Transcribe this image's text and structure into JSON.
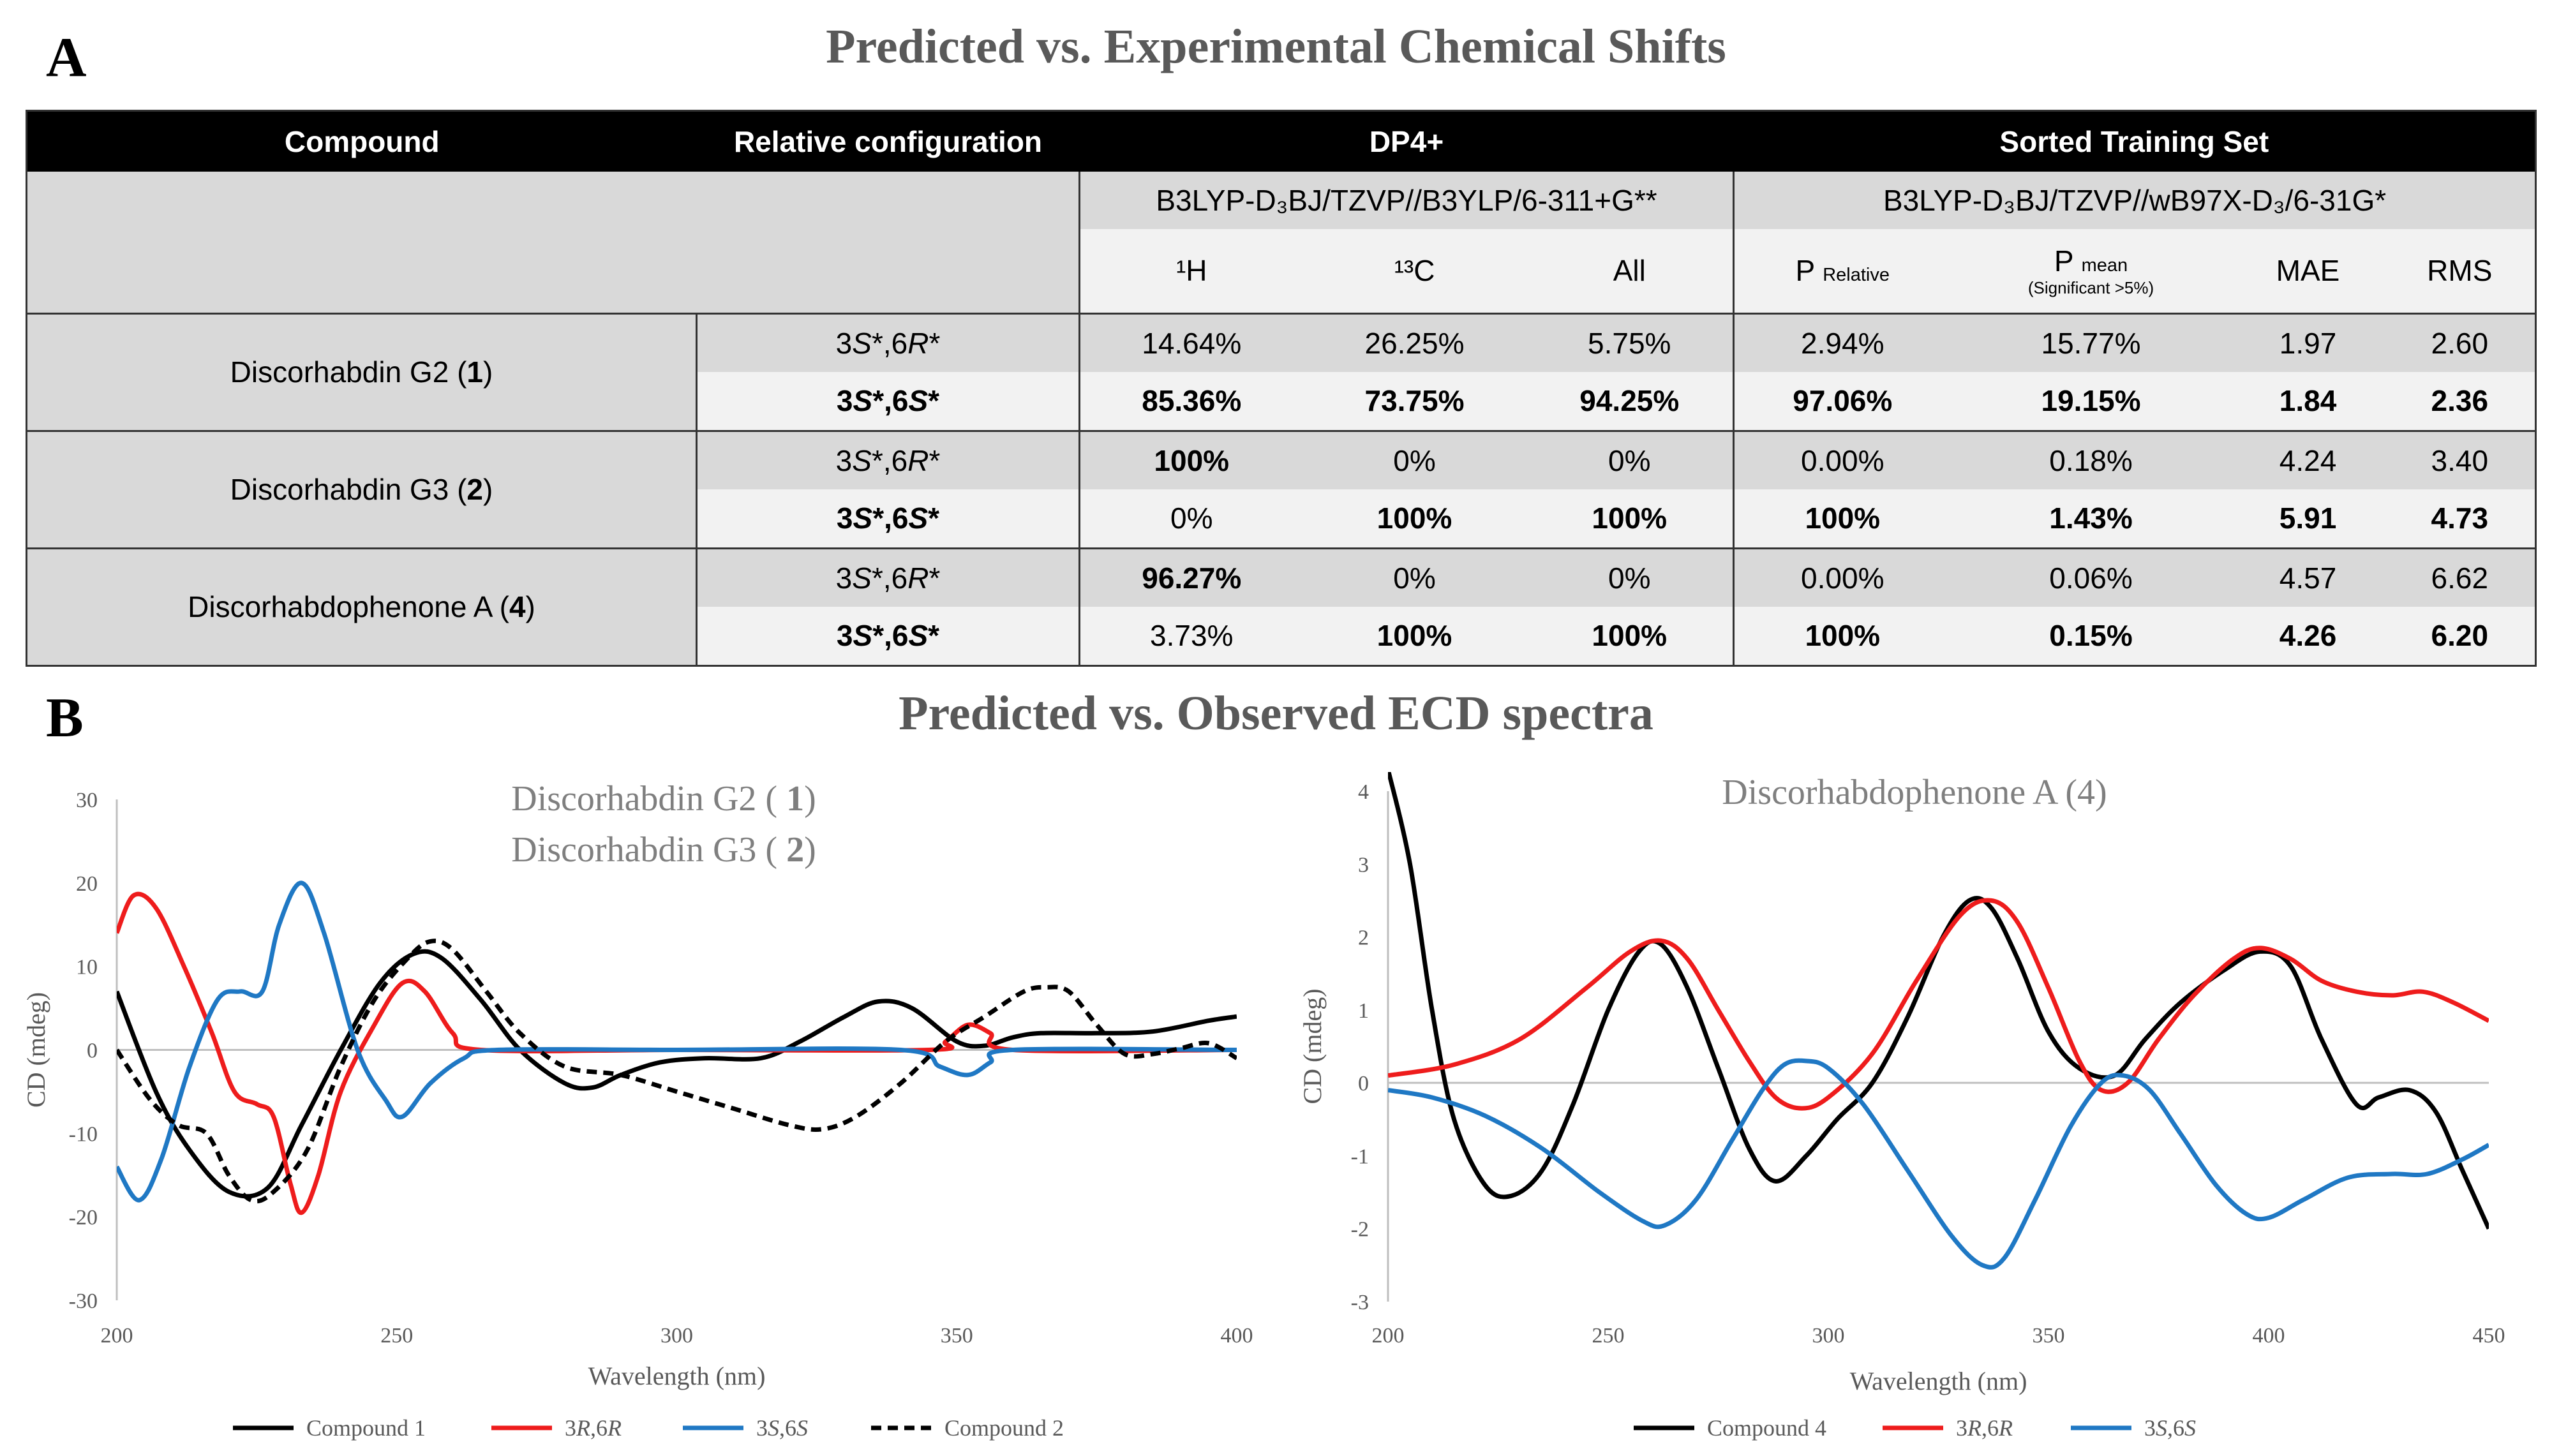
{
  "panel_a": {
    "letter": "A",
    "title": "Predicted vs. Experimental Chemical Shifts",
    "headers": {
      "compound": "Compound",
      "relative_configuration": "Relative configuration",
      "dp4": "DP4+",
      "sorted_training_set": "Sorted Training Set"
    },
    "dp4_method": "B3LYP-D₃BJ/TZVP//B3YLP/6-311+G**",
    "sts_method": "B3LYP-D₃BJ/TZVP//wB97X-D₃/6-31G*",
    "subheaders": {
      "h1": "¹H",
      "c13": "¹³C",
      "all": "All",
      "p_relative_main": "P",
      "p_relative_sub": "Relative",
      "p_mean_main": "P",
      "p_mean_sub": "mean",
      "p_mean_note": "(Significant >5%)",
      "mae": "MAE",
      "rms": "RMS"
    },
    "compounds": [
      {
        "name": "Discorhabdin G2 (",
        "num": "1",
        "close": ")",
        "rows": [
          {
            "config": "3S*,6R*",
            "h1": "14.64%",
            "c13": "26.25%",
            "all": "5.75%",
            "p_rel": "2.94%",
            "p_mean": "15.77%",
            "mae": "1.97",
            "rms": "2.60"
          },
          {
            "config": "3S*,6S*",
            "h1": "85.36%",
            "c13": "73.75%",
            "all": "94.25%",
            "p_rel": "97.06%",
            "p_mean": "19.15%",
            "mae": "1.84",
            "rms": "2.36"
          }
        ]
      },
      {
        "name": "Discorhabdin G3 (",
        "num": "2",
        "close": ")",
        "rows": [
          {
            "config": "3S*,6R*",
            "h1": "100%",
            "c13": "0%",
            "all": "0%",
            "p_rel": "0.00%",
            "p_mean": "0.18%",
            "mae": "4.24",
            "rms": "3.40"
          },
          {
            "config": "3S*,6S*",
            "h1": "0%",
            "c13": "100%",
            "all": "100%",
            "p_rel": "100%",
            "p_mean": "1.43%",
            "mae": "5.91",
            "rms": "4.73"
          }
        ]
      },
      {
        "name": "Discorhabdophenone A (",
        "num": "4",
        "close": ")",
        "rows": [
          {
            "config": "3S*,6R*",
            "h1": "96.27%",
            "c13": "0%",
            "all": "0%",
            "p_rel": "0.00%",
            "p_mean": "0.06%",
            "mae": "4.57",
            "rms": "6.62"
          },
          {
            "config": "3S*,6S*",
            "h1": "3.73%",
            "c13": "100%",
            "all": "100%",
            "p_rel": "100%",
            "p_mean": "0.15%",
            "mae": "4.26",
            "rms": "6.20"
          }
        ]
      }
    ]
  },
  "panel_b": {
    "letter": "B",
    "title": "Predicted vs. Observed ECD spectra"
  },
  "colors": {
    "compound": "#000000",
    "rr": "#ee1c1c",
    "ss": "#1f78c4",
    "axis": "#bfbfbf"
  },
  "chart_data": [
    {
      "type": "line",
      "title_lines": [
        "Discorhabdin G2 ( 1)",
        "Discorhabdin G3 ( 2)"
      ],
      "xlabel": "Wavelength (nm)",
      "ylabel": "CD (mdeg)",
      "xlim": [
        200,
        400
      ],
      "ylim": [
        -30,
        30
      ],
      "xticks": [
        200,
        250,
        300,
        350,
        400
      ],
      "yticks": [
        -30,
        -20,
        -10,
        0,
        10,
        20,
        30
      ],
      "series": [
        {
          "name": "Compound 1",
          "color": "#000000",
          "dashed": false,
          "points": [
            [
              200,
              7
            ],
            [
              207,
              -5
            ],
            [
              213,
              -12
            ],
            [
              220,
              -17
            ],
            [
              227,
              -16.5
            ],
            [
              233,
              -9
            ],
            [
              240,
              0
            ],
            [
              247,
              8
            ],
            [
              253,
              11.5
            ],
            [
              258,
              11
            ],
            [
              265,
              6
            ],
            [
              272,
              0
            ],
            [
              280,
              -4
            ],
            [
              285,
              -4.5
            ],
            [
              290,
              -3
            ],
            [
              297,
              -1.5
            ],
            [
              305,
              -1
            ],
            [
              315,
              -1
            ],
            [
              322,
              1
            ],
            [
              330,
              4
            ],
            [
              336,
              5.8
            ],
            [
              342,
              5
            ],
            [
              350,
              1
            ],
            [
              355,
              0.5
            ],
            [
              360,
              1.5
            ],
            [
              365,
              2
            ],
            [
              375,
              2
            ],
            [
              385,
              2.2
            ],
            [
              395,
              3.5
            ],
            [
              400,
              4
            ]
          ]
        },
        {
          "name": "3R,6R",
          "color": "#ee1c1c",
          "dashed": false,
          "points": [
            [
              200,
              14
            ],
            [
              203,
              18.5
            ],
            [
              207,
              17
            ],
            [
              212,
              10
            ],
            [
              217,
              2
            ],
            [
              221,
              -5
            ],
            [
              225,
              -6.5
            ],
            [
              228,
              -8
            ],
            [
              231,
              -16
            ],
            [
              233,
              -19.5
            ],
            [
              236,
              -15
            ],
            [
              240,
              -5
            ],
            [
              246,
              3
            ],
            [
              251,
              8
            ],
            [
              255,
              7
            ],
            [
              260,
              2
            ],
            [
              265,
              0
            ],
            [
              300,
              0
            ],
            [
              345,
              0
            ],
            [
              348,
              1
            ],
            [
              352,
              3
            ],
            [
              356,
              2
            ],
            [
              360,
              0
            ],
            [
              400,
              0
            ]
          ]
        },
        {
          "name": "3S,6S",
          "color": "#1f78c4",
          "dashed": false,
          "points": [
            [
              200,
              -14
            ],
            [
              204,
              -18
            ],
            [
              208,
              -13
            ],
            [
              213,
              -2
            ],
            [
              218,
              6
            ],
            [
              222,
              7
            ],
            [
              226,
              7
            ],
            [
              229,
              15
            ],
            [
              233,
              20
            ],
            [
              237,
              14
            ],
            [
              243,
              0
            ],
            [
              248,
              -6
            ],
            [
              251,
              -8
            ],
            [
              256,
              -4
            ],
            [
              262,
              -1
            ],
            [
              268,
              0
            ],
            [
              300,
              0
            ],
            [
              340,
              0
            ],
            [
              347,
              -2
            ],
            [
              352,
              -3
            ],
            [
              356,
              -1.5
            ],
            [
              360,
              0
            ],
            [
              400,
              0
            ]
          ]
        },
        {
          "name": "Compound 2",
          "color": "#000000",
          "dashed": true,
          "points": [
            [
              200,
              0
            ],
            [
              206,
              -6
            ],
            [
              211,
              -9
            ],
            [
              216,
              -10
            ],
            [
              220,
              -15
            ],
            [
              224,
              -18
            ],
            [
              228,
              -17
            ],
            [
              234,
              -12
            ],
            [
              240,
              -2
            ],
            [
              246,
              6
            ],
            [
              252,
              11
            ],
            [
              256,
              13
            ],
            [
              260,
              12
            ],
            [
              266,
              7
            ],
            [
              272,
              2
            ],
            [
              280,
              -2
            ],
            [
              290,
              -3
            ],
            [
              300,
              -5
            ],
            [
              310,
              -7
            ],
            [
              320,
              -9
            ],
            [
              326,
              -9.5
            ],
            [
              332,
              -8
            ],
            [
              340,
              -4
            ],
            [
              348,
              1
            ],
            [
              355,
              4
            ],
            [
              362,
              7
            ],
            [
              366,
              7.5
            ],
            [
              370,
              7
            ],
            [
              375,
              3
            ],
            [
              380,
              -0.5
            ],
            [
              385,
              -0.5
            ],
            [
              390,
              0.2
            ],
            [
              395,
              0.8
            ],
            [
              400,
              -1
            ]
          ]
        }
      ],
      "legend": [
        "Compound 1",
        "3R,6R",
        "3S,6S",
        "Compound 2"
      ]
    },
    {
      "type": "line",
      "title_lines": [
        "Discorhabdophenone A (4)"
      ],
      "xlabel": "Wavelength (nm)",
      "ylabel": "CD (mdeg)",
      "xlim": [
        200,
        450
      ],
      "ylim": [
        -3,
        4
      ],
      "xticks": [
        200,
        250,
        300,
        350,
        400,
        450
      ],
      "yticks": [
        -3,
        -2,
        -1,
        0,
        1,
        2,
        3,
        4
      ],
      "series": [
        {
          "name": "Compound 4",
          "color": "#000000",
          "dashed": false,
          "points": [
            [
              200,
              4.3
            ],
            [
              205,
              3
            ],
            [
              210,
              1
            ],
            [
              215,
              -0.5
            ],
            [
              222,
              -1.4
            ],
            [
              228,
              -1.55
            ],
            [
              235,
              -1.2
            ],
            [
              242,
              -0.3
            ],
            [
              250,
              1
            ],
            [
              257,
              1.8
            ],
            [
              262,
              1.9
            ],
            [
              268,
              1.3
            ],
            [
              275,
              0.2
            ],
            [
              282,
              -0.9
            ],
            [
              288,
              -1.35
            ],
            [
              295,
              -1
            ],
            [
              302,
              -0.5
            ],
            [
              310,
              0
            ],
            [
              318,
              0.9
            ],
            [
              326,
              2
            ],
            [
              332,
              2.5
            ],
            [
              337,
              2.4
            ],
            [
              343,
              1.7
            ],
            [
              350,
              0.7
            ],
            [
              357,
              0.2
            ],
            [
              365,
              0.1
            ],
            [
              372,
              0.6
            ],
            [
              380,
              1.1
            ],
            [
              390,
              1.55
            ],
            [
              398,
              1.8
            ],
            [
              405,
              1.6
            ],
            [
              412,
              0.6
            ],
            [
              420,
              -0.3
            ],
            [
              425,
              -0.2
            ],
            [
              432,
              -0.1
            ],
            [
              438,
              -0.4
            ],
            [
              444,
              -1.2
            ],
            [
              450,
              -2
            ]
          ]
        },
        {
          "name": "3R,6R",
          "color": "#ee1c1c",
          "dashed": false,
          "points": [
            [
              200,
              0.1
            ],
            [
              215,
              0.25
            ],
            [
              230,
              0.6
            ],
            [
              245,
              1.3
            ],
            [
              255,
              1.8
            ],
            [
              262,
              1.95
            ],
            [
              268,
              1.7
            ],
            [
              275,
              1
            ],
            [
              282,
              0.3
            ],
            [
              288,
              -0.2
            ],
            [
              294,
              -0.35
            ],
            [
              300,
              -0.2
            ],
            [
              310,
              0.4
            ],
            [
              320,
              1.4
            ],
            [
              330,
              2.3
            ],
            [
              337,
              2.5
            ],
            [
              343,
              2.2
            ],
            [
              350,
              1.3
            ],
            [
              357,
              0.3
            ],
            [
              362,
              -0.1
            ],
            [
              368,
              0
            ],
            [
              375,
              0.6
            ],
            [
              383,
              1.2
            ],
            [
              392,
              1.7
            ],
            [
              398,
              1.85
            ],
            [
              405,
              1.7
            ],
            [
              412,
              1.4
            ],
            [
              420,
              1.25
            ],
            [
              428,
              1.2
            ],
            [
              435,
              1.25
            ],
            [
              442,
              1.1
            ],
            [
              450,
              0.85
            ]
          ]
        },
        {
          "name": "3S,6S",
          "color": "#1f78c4",
          "dashed": false,
          "points": [
            [
              200,
              -0.1
            ],
            [
              210,
              -0.2
            ],
            [
              222,
              -0.45
            ],
            [
              235,
              -0.9
            ],
            [
              248,
              -1.5
            ],
            [
              258,
              -1.9
            ],
            [
              263,
              -1.95
            ],
            [
              270,
              -1.6
            ],
            [
              278,
              -0.8
            ],
            [
              285,
              -0.1
            ],
            [
              290,
              0.25
            ],
            [
              295,
              0.3
            ],
            [
              300,
              0.2
            ],
            [
              308,
              -0.3
            ],
            [
              318,
              -1.2
            ],
            [
              328,
              -2.1
            ],
            [
              335,
              -2.5
            ],
            [
              340,
              -2.4
            ],
            [
              347,
              -1.6
            ],
            [
              355,
              -0.6
            ],
            [
              362,
              0
            ],
            [
              367,
              0.1
            ],
            [
              373,
              -0.1
            ],
            [
              380,
              -0.7
            ],
            [
              388,
              -1.4
            ],
            [
              395,
              -1.8
            ],
            [
              400,
              -1.85
            ],
            [
              408,
              -1.6
            ],
            [
              418,
              -1.3
            ],
            [
              428,
              -1.25
            ],
            [
              436,
              -1.25
            ],
            [
              444,
              -1.05
            ],
            [
              450,
              -0.85
            ]
          ]
        }
      ],
      "legend": [
        "Compound 4",
        "3R,6R",
        "3S,6S"
      ]
    }
  ]
}
